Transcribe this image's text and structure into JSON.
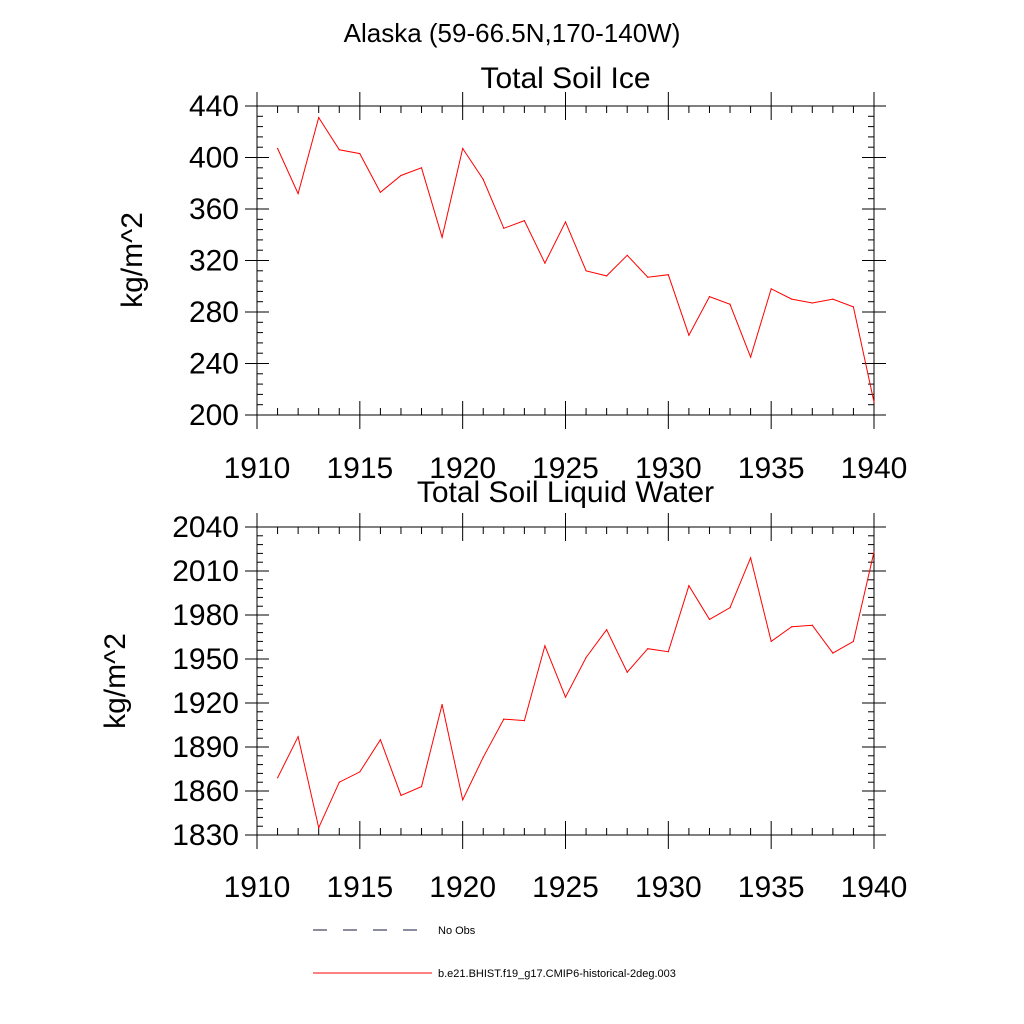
{
  "page_title": "Alaska (59-66.5N,170-140W)",
  "legend": {
    "entries": [
      {
        "label": "No Obs",
        "style": "dashed",
        "color": "#1a1a40"
      },
      {
        "label": "b.e21.BHIST.f19_g17.CMIP6-historical-2deg.003",
        "style": "solid",
        "color": "#ff0000"
      }
    ]
  },
  "chart_data": [
    {
      "type": "line",
      "title": "Total Soil Ice",
      "xlabel": "",
      "ylabel": "kg/m^2",
      "xlim": [
        1910,
        1940
      ],
      "ylim": [
        200,
        440
      ],
      "xticks": [
        "1910",
        "1915",
        "1920",
        "1925",
        "1930",
        "1935",
        "1940"
      ],
      "yticks": [
        "200",
        "240",
        "280",
        "320",
        "360",
        "400",
        "440"
      ],
      "grid": false,
      "series": [
        {
          "name": "b.e21.BHIST.f19_g17.CMIP6-historical-2deg.003",
          "color": "#ff0000",
          "x": [
            1911,
            1912,
            1913,
            1914,
            1915,
            1916,
            1917,
            1918,
            1919,
            1920,
            1921,
            1922,
            1923,
            1924,
            1925,
            1926,
            1927,
            1928,
            1929,
            1930,
            1931,
            1932,
            1933,
            1934,
            1935,
            1936,
            1937,
            1938,
            1939,
            1940
          ],
          "values": [
            407,
            372,
            431,
            406,
            403,
            373,
            386,
            392,
            338,
            407,
            383,
            345,
            351,
            318,
            350,
            312,
            308,
            324,
            307,
            309,
            262,
            292,
            286,
            245,
            298,
            290,
            287,
            290,
            284,
            210
          ]
        }
      ]
    },
    {
      "type": "line",
      "title": "Total Soil Liquid Water",
      "xlabel": "",
      "ylabel": "kg/m^2",
      "xlim": [
        1910,
        1940
      ],
      "ylim": [
        1830,
        2040
      ],
      "xticks": [
        "1910",
        "1915",
        "1920",
        "1925",
        "1930",
        "1935",
        "1940"
      ],
      "yticks": [
        "1830",
        "1860",
        "1890",
        "1920",
        "1950",
        "1980",
        "2010",
        "2040"
      ],
      "grid": false,
      "series": [
        {
          "name": "b.e21.BHIST.f19_g17.CMIP6-historical-2deg.003",
          "color": "#ff0000",
          "x": [
            1911,
            1912,
            1913,
            1914,
            1915,
            1916,
            1917,
            1918,
            1919,
            1920,
            1921,
            1922,
            1923,
            1924,
            1925,
            1926,
            1927,
            1928,
            1929,
            1930,
            1931,
            1932,
            1933,
            1934,
            1935,
            1936,
            1937,
            1938,
            1939,
            1940
          ],
          "values": [
            1869,
            1897,
            1835,
            1866,
            1873,
            1895,
            1857,
            1863,
            1919,
            1854,
            1883,
            1909,
            1908,
            1959,
            1924,
            1951,
            1970,
            1941,
            1957,
            1955,
            2000,
            1977,
            1985,
            2019,
            1962,
            1972,
            1973,
            1954,
            1962,
            2023
          ]
        }
      ]
    }
  ]
}
